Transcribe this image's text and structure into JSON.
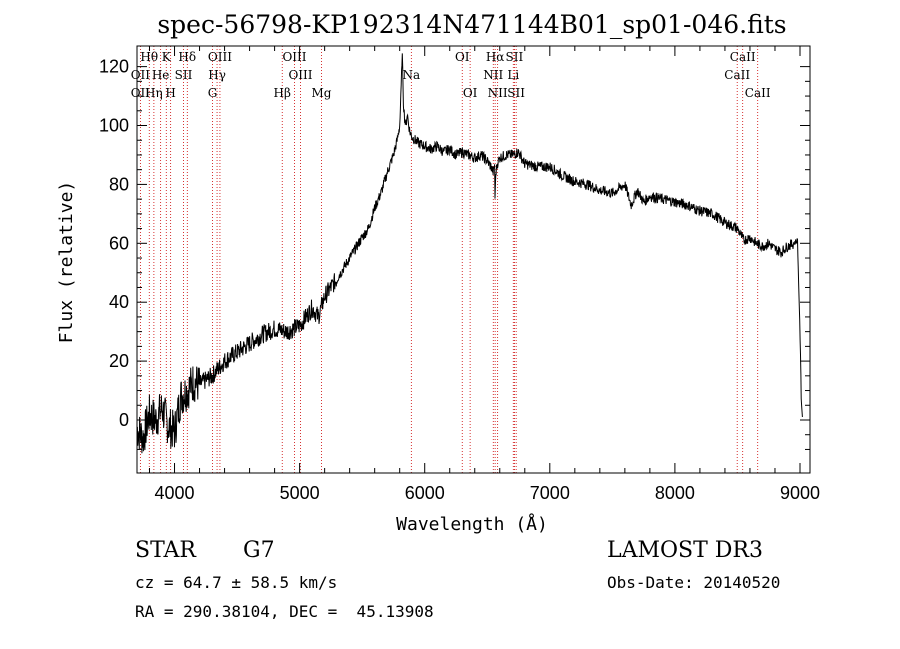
{
  "chart_data": {
    "type": "line",
    "title": "spec-56798-KP192314N471144B01_sp01-046.fits",
    "xlabel": "Wavelength (Å)",
    "ylabel": "Flux (relative)",
    "xlim": [
      3700,
      9080
    ],
    "ylim": [
      -18,
      127
    ],
    "xticks": [
      4000,
      5000,
      6000,
      7000,
      8000,
      9000
    ],
    "yticks": [
      0,
      20,
      40,
      60,
      80,
      100,
      120
    ],
    "grid": false,
    "series": [
      {
        "name": "flux",
        "x": [
          3700,
          3750,
          3800,
          3850,
          3900,
          3950,
          4000,
          4050,
          4100,
          4150,
          4200,
          4300,
          4400,
          4500,
          4600,
          4700,
          4800,
          4900,
          5000,
          5100,
          5150,
          5200,
          5250,
          5300,
          5400,
          5500,
          5550,
          5600,
          5650,
          5700,
          5750,
          5780,
          5800,
          5810,
          5820,
          5830,
          5840,
          5850,
          5860,
          5870,
          5880,
          5900,
          5950,
          6000,
          6050,
          6100,
          6150,
          6200,
          6250,
          6300,
          6350,
          6400,
          6450,
          6500,
          6530,
          6550,
          6560,
          6563,
          6566,
          6580,
          6600,
          6650,
          6700,
          6750,
          6800,
          6900,
          7000,
          7100,
          7200,
          7300,
          7400,
          7500,
          7600,
          7650,
          7700,
          7750,
          7800,
          7900,
          8000,
          8100,
          8200,
          8300,
          8400,
          8450,
          8500,
          8550,
          8600,
          8650,
          8700,
          8750,
          8800,
          8850,
          8900,
          8950,
          8980,
          9000,
          9010,
          9020
        ],
        "values": [
          -3,
          -6,
          2,
          0,
          4,
          -2,
          -4,
          8,
          10,
          13,
          12,
          15,
          20,
          23,
          26,
          29,
          31,
          30,
          32,
          38,
          35,
          42,
          45,
          48,
          55,
          62,
          65,
          72,
          77,
          84,
          90,
          95,
          100,
          110,
          125,
          108,
          102,
          100,
          104,
          101,
          98,
          96,
          94,
          93,
          92,
          93,
          91,
          92,
          90,
          91,
          90,
          89,
          90,
          88,
          86,
          84,
          87,
          70,
          83,
          87,
          89,
          90,
          90,
          91,
          87,
          86,
          86,
          83,
          81,
          80,
          78,
          77,
          80,
          73,
          78,
          74,
          76,
          75,
          74,
          73,
          71,
          70,
          67,
          66,
          65,
          61,
          62,
          60,
          59,
          60,
          58,
          57,
          59,
          60,
          61,
          30,
          8,
          0
        ]
      }
    ],
    "lines": [
      {
        "label": "Hθ",
        "row": 0,
        "wl": 3798
      },
      {
        "label": "K",
        "row": 0,
        "wl": 3934
      },
      {
        "label": "Hδ",
        "row": 0,
        "wl": 4102
      },
      {
        "label": "OIII",
        "row": 0,
        "wl": 4363
      },
      {
        "label": "OIII",
        "row": 0,
        "wl": 4959
      },
      {
        "label": "OI",
        "row": 0,
        "wl": 6300
      },
      {
        "label": "Hα",
        "row": 0,
        "wl": 6563
      },
      {
        "label": "SII",
        "row": 0,
        "wl": 6717
      },
      {
        "label": "CaII",
        "row": 0,
        "wl": 8542
      },
      {
        "label": "OII",
        "row": 1,
        "wl": 3727
      },
      {
        "label": "He",
        "row": 1,
        "wl": 3889
      },
      {
        "label": "SII",
        "row": 1,
        "wl": 4072
      },
      {
        "label": "Hγ",
        "row": 1,
        "wl": 4340
      },
      {
        "label": "OIII",
        "row": 1,
        "wl": 5007
      },
      {
        "label": "Na",
        "row": 1,
        "wl": 5893
      },
      {
        "label": "NII",
        "row": 1,
        "wl": 6548
      },
      {
        "label": "Li",
        "row": 1,
        "wl": 6708
      },
      {
        "label": "CaII",
        "row": 1,
        "wl": 8498
      },
      {
        "label": "OII",
        "row": 2,
        "wl": 3727
      },
      {
        "label": "Hη",
        "row": 2,
        "wl": 3835
      },
      {
        "label": "H",
        "row": 2,
        "wl": 3969
      },
      {
        "label": "G",
        "row": 2,
        "wl": 4304
      },
      {
        "label": "Hβ",
        "row": 2,
        "wl": 4861
      },
      {
        "label": "Mg",
        "row": 2,
        "wl": 5175
      },
      {
        "label": "OI",
        "row": 2,
        "wl": 6363
      },
      {
        "label": "NII",
        "row": 2,
        "wl": 6583
      },
      {
        "label": "SII",
        "row": 2,
        "wl": 6731
      },
      {
        "label": "CaII",
        "row": 2,
        "wl": 8662
      }
    ]
  },
  "info": {
    "class_label": "STAR",
    "subclass": "G7",
    "survey": "LAMOST DR3",
    "cz_line": "cz = 64.7 ± 58.5 km/s",
    "obs_date": "Obs-Date: 20140520",
    "coords": "RA = 290.38104, DEC =  45.13908"
  },
  "colors": {
    "axis": "#000000",
    "spectrum": "#000000",
    "line_markers": "#cc0000"
  }
}
